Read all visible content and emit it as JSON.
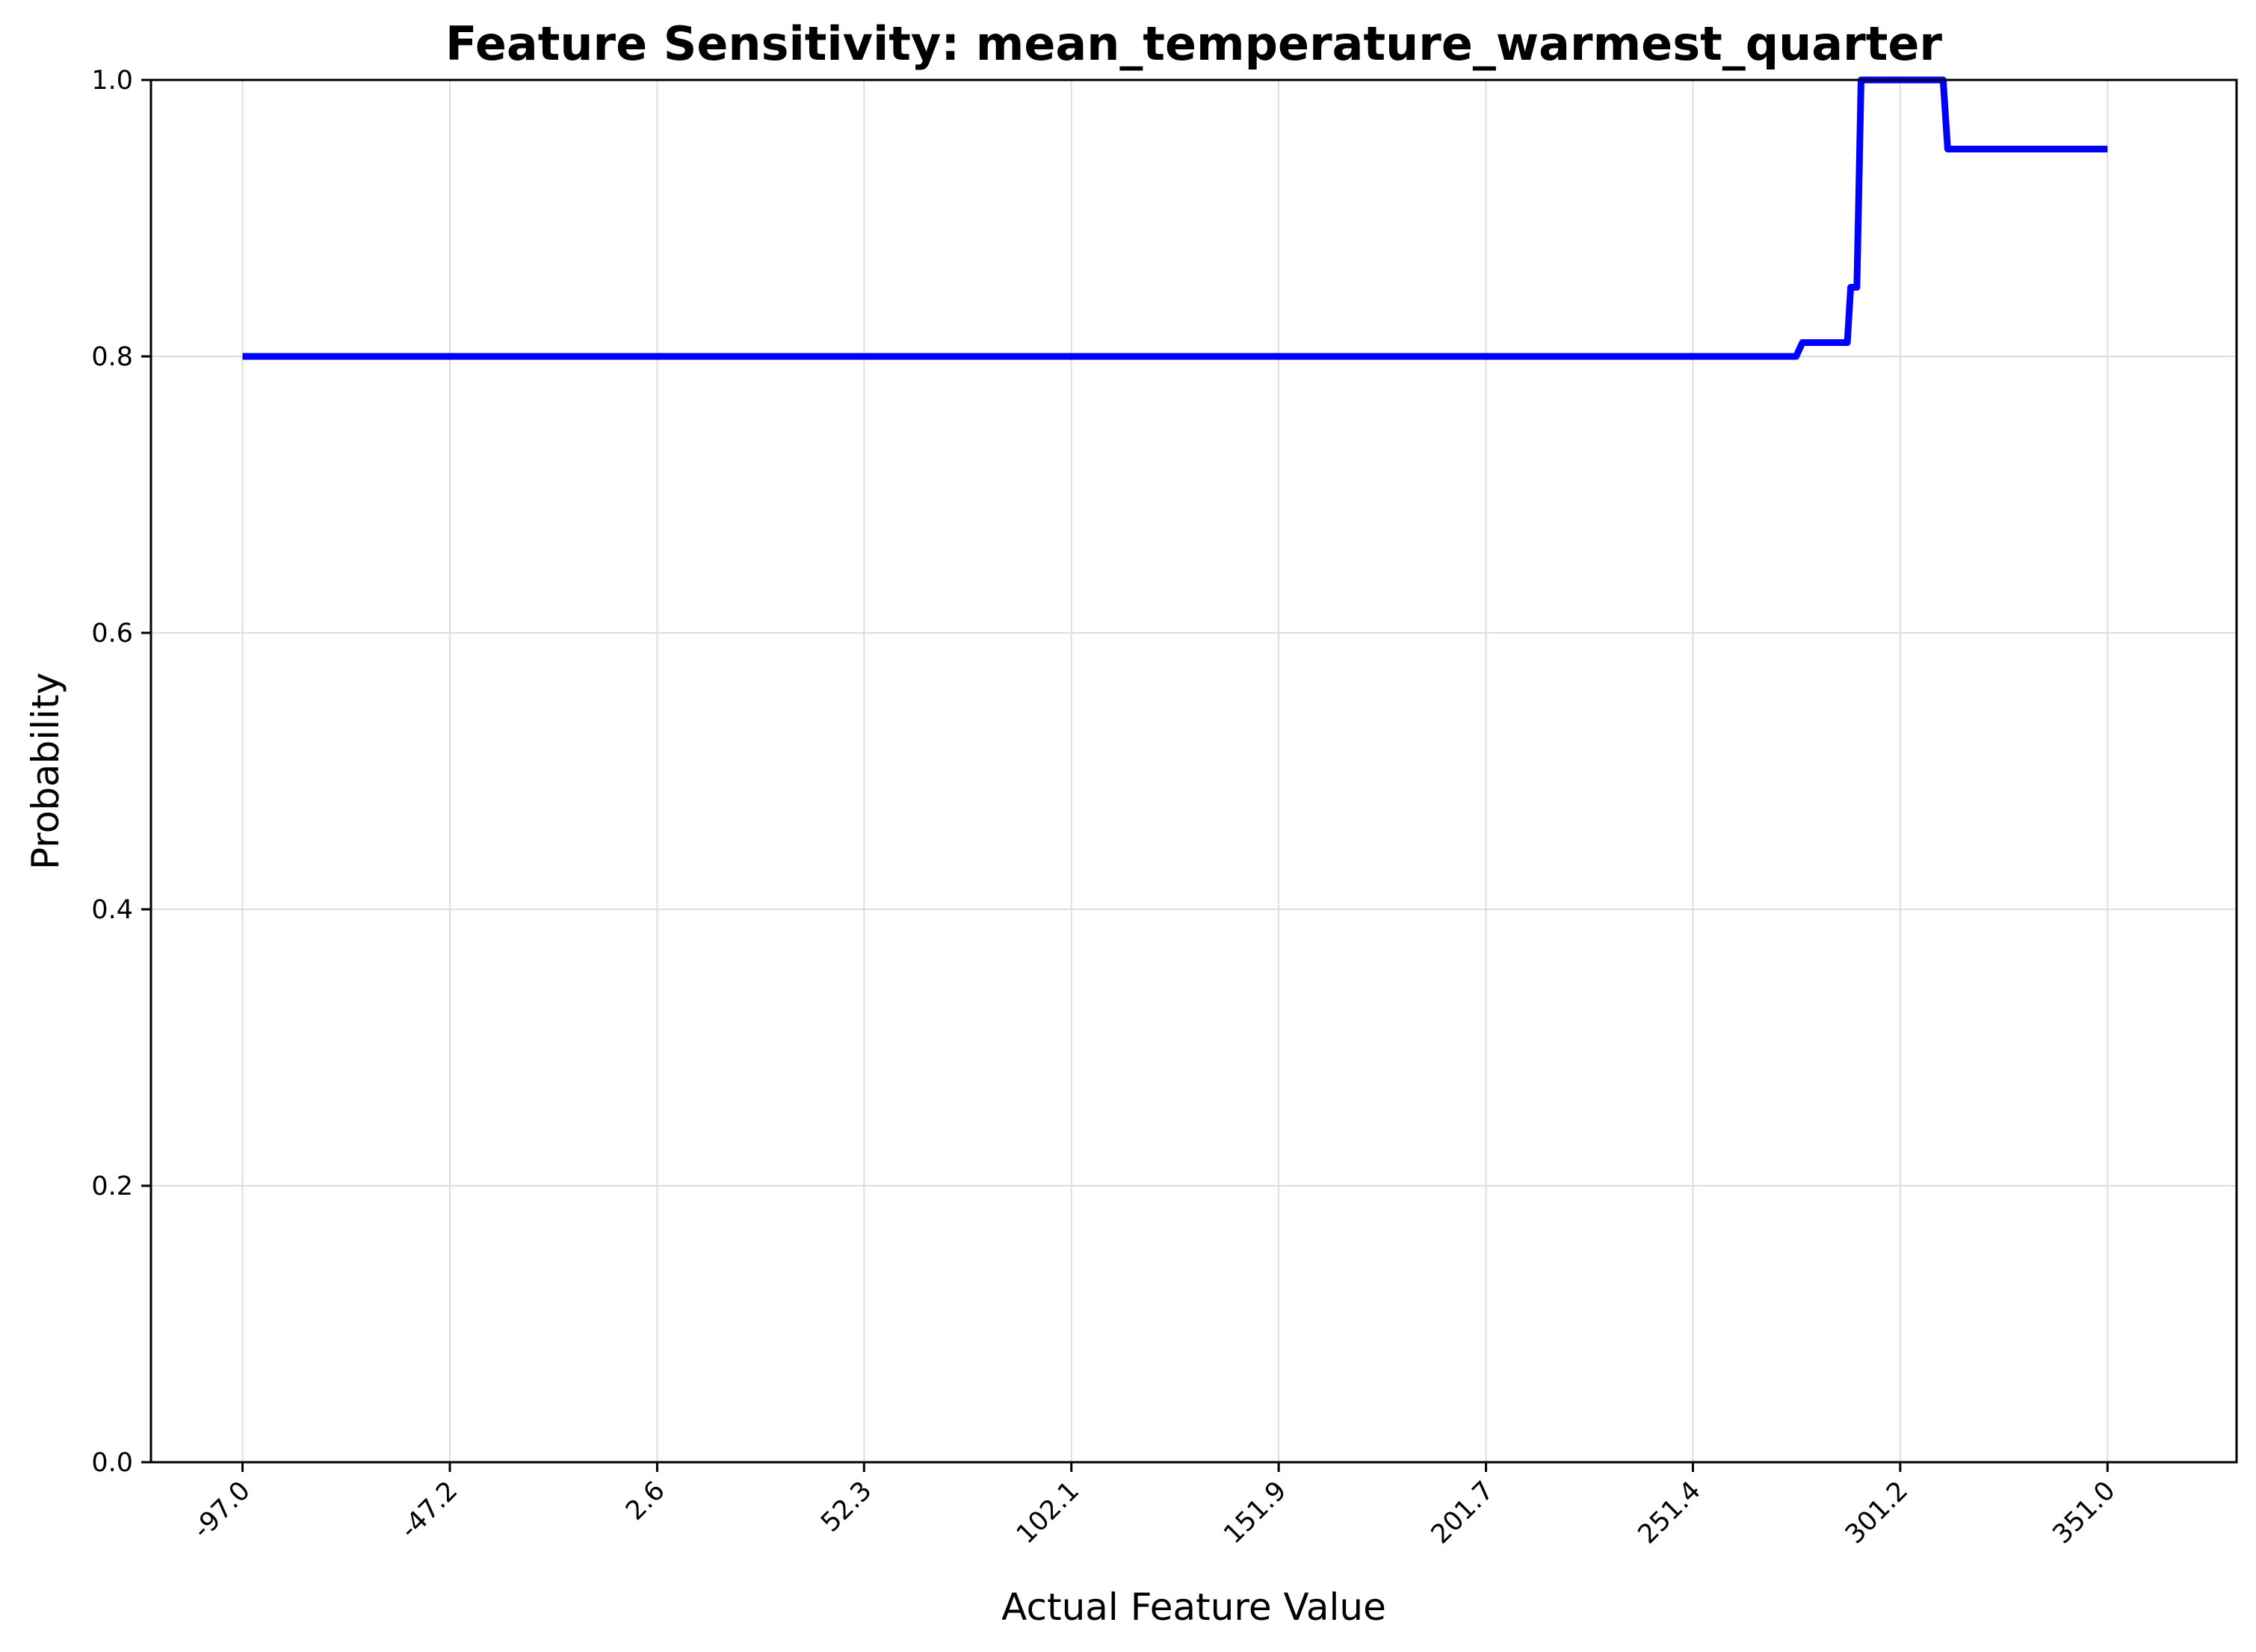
{
  "chart_data": {
    "type": "line",
    "title": "Feature Sensitivity: mean_temperature_warmest_quarter",
    "xlabel": "Actual Feature Value",
    "ylabel": "Probability",
    "xlim": [
      -119.0,
      382.0
    ],
    "ylim": [
      0.0,
      1.0
    ],
    "x_ticks": [
      "-97.0",
      "-47.2",
      "2.6",
      "52.3",
      "102.1",
      "151.9",
      "201.7",
      "251.4",
      "301.2",
      "351.0"
    ],
    "x_tick_values": [
      -97.0,
      -47.2,
      2.6,
      52.3,
      102.1,
      151.9,
      201.7,
      251.4,
      301.2,
      351.0
    ],
    "y_ticks": [
      "0.0",
      "0.2",
      "0.4",
      "0.6",
      "0.8",
      "1.0"
    ],
    "y_tick_values": [
      0.0,
      0.2,
      0.4,
      0.6,
      0.8,
      1.0
    ],
    "grid": true,
    "line_color": "#0000ff",
    "series": [
      {
        "name": "",
        "x": [
          -97.0,
          276.2,
          277.7,
          288.5,
          289.3,
          290.8,
          291.8,
          311.5,
          312.6,
          351.0
        ],
        "y": [
          0.8,
          0.8,
          0.81,
          0.81,
          0.85,
          0.85,
          1.0,
          1.0,
          0.95,
          0.95
        ]
      }
    ]
  }
}
